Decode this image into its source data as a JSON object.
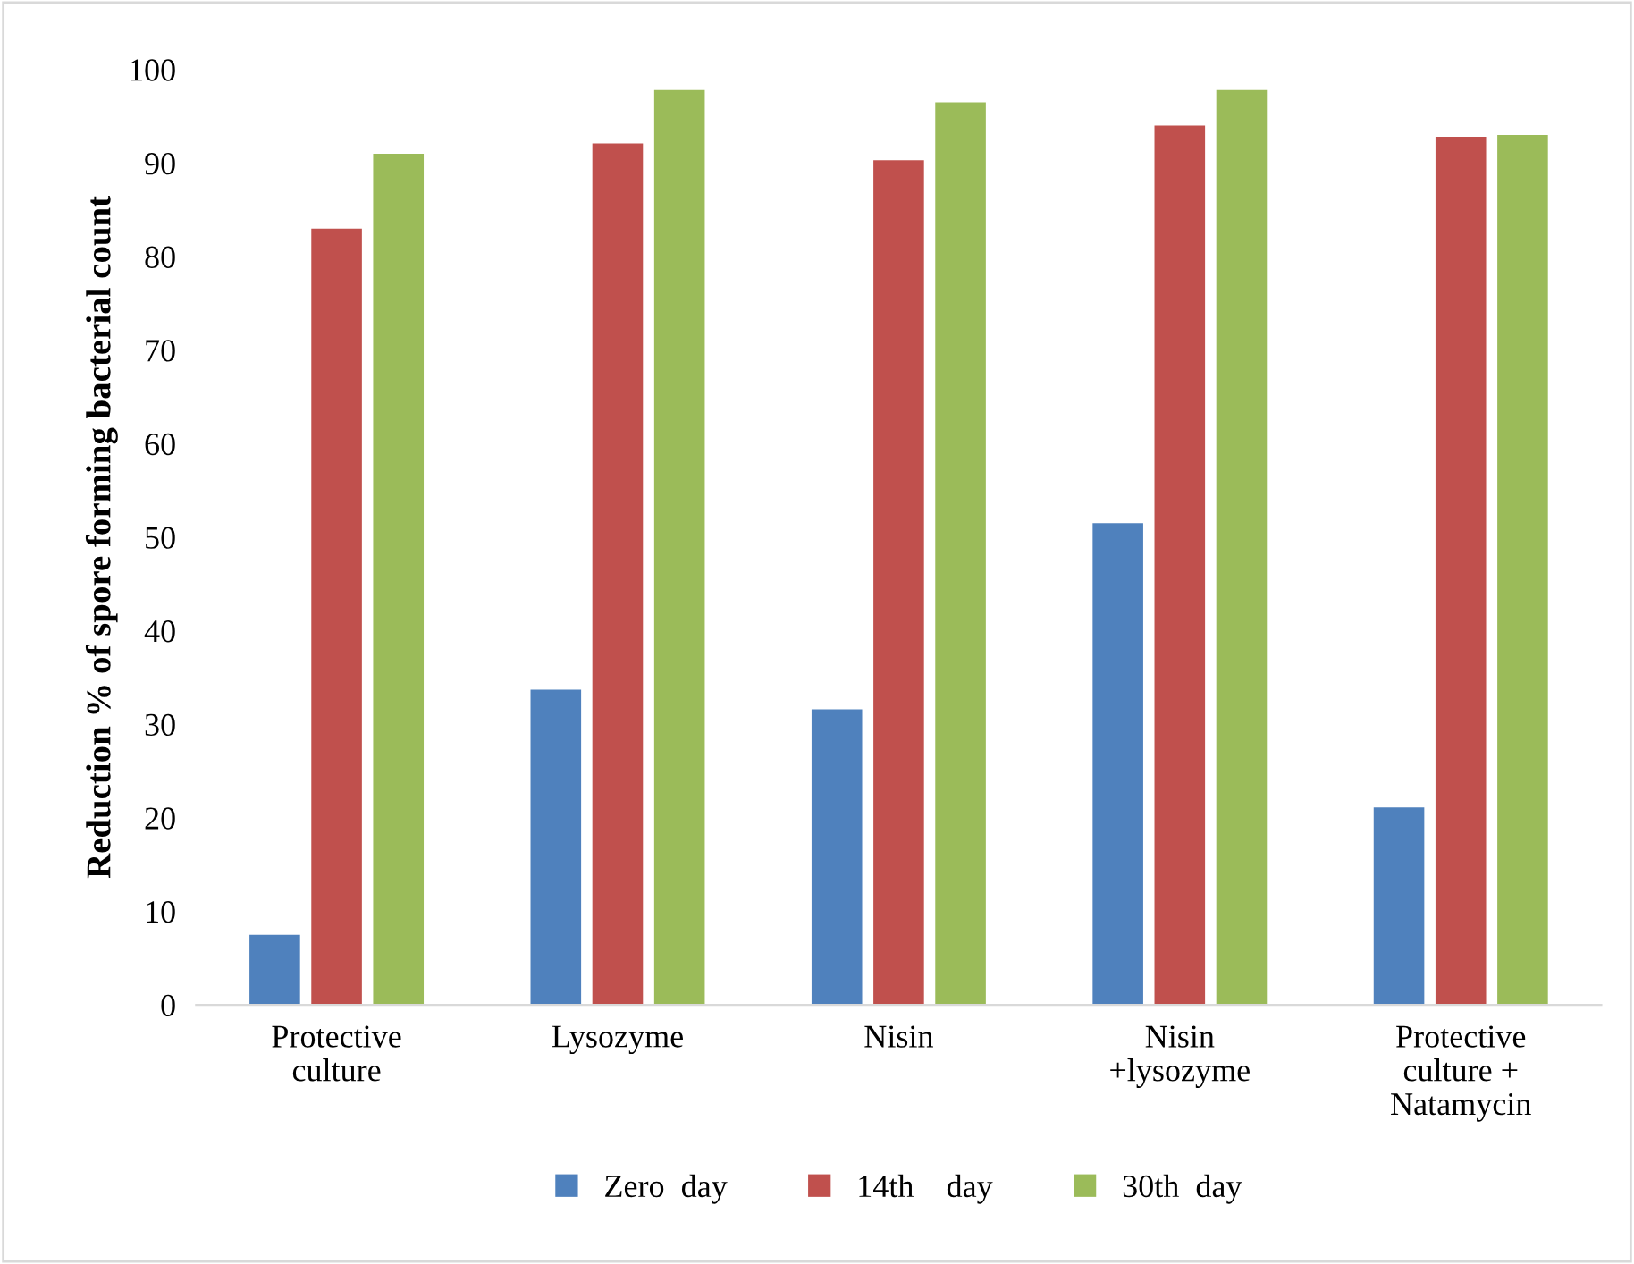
{
  "chart_data": {
    "type": "bar",
    "ylabel": "Reduction % of spore forming bacterial count",
    "categories": [
      "Protective\nculture",
      "Lysozyme",
      "Nisin",
      "Nisin\n+lysozyme",
      "Protective\nculture +\nNatamycin"
    ],
    "series": [
      {
        "name": "Zero  day",
        "color": "#4f81bd",
        "values": [
          7.5,
          33.7,
          31.6,
          51.5,
          21.1
        ]
      },
      {
        "name": "14th    day",
        "color": "#c0504d",
        "values": [
          83,
          92.1,
          90.3,
          94,
          92.8
        ]
      },
      {
        "name": "30th  day",
        "color": "#9bbb59",
        "values": [
          91,
          97.8,
          96.5,
          97.8,
          93
        ]
      }
    ],
    "ylim": [
      0,
      100
    ],
    "yticks": [
      0,
      10,
      20,
      30,
      40,
      50,
      60,
      70,
      80,
      90,
      100
    ],
    "grid": false,
    "legend": "bottom"
  }
}
